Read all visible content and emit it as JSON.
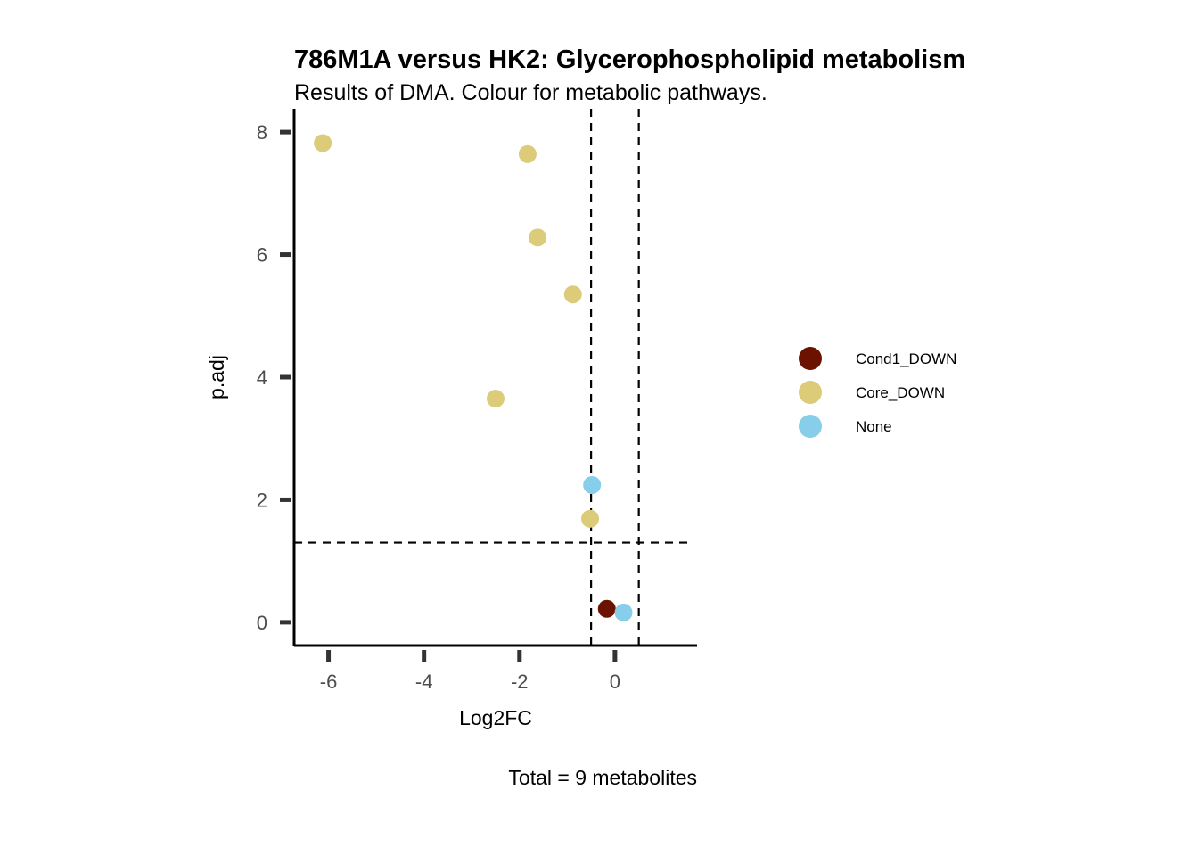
{
  "chart_data": {
    "type": "scatter",
    "title": "786M1A versus HK2: Glycerophospholipid metabolism",
    "subtitle": "Results of DMA. Colour for metabolic pathways.",
    "xlabel": "Log2FC",
    "ylabel": "p.adj",
    "caption": "Total = 9 metabolites",
    "xlim": [
      -6.72,
      1.72
    ],
    "ylim": [
      -0.38,
      8.38
    ],
    "xticks": [
      -6,
      -4,
      -2,
      0
    ],
    "yticks": [
      0,
      2,
      4,
      6,
      8
    ],
    "xtick_labels": [
      "-6",
      "-4",
      "-2",
      "0"
    ],
    "ytick_labels": [
      "0",
      "2",
      "4",
      "6",
      "8"
    ],
    "thresholds": {
      "x": [
        -0.5,
        0.5
      ],
      "y": [
        1.3
      ]
    },
    "grid": false,
    "legend_position": "right",
    "series": [
      {
        "name": "Cond1_DOWN",
        "color": "#6b1200",
        "points": [
          {
            "x": -0.17,
            "y": 0.22
          }
        ]
      },
      {
        "name": "Core_DOWN",
        "color": "#dccb78",
        "points": [
          {
            "x": -6.12,
            "y": 7.82
          },
          {
            "x": -1.83,
            "y": 7.64
          },
          {
            "x": -1.62,
            "y": 6.28
          },
          {
            "x": -0.88,
            "y": 5.35
          },
          {
            "x": -2.5,
            "y": 3.65
          },
          {
            "x": -0.52,
            "y": 1.69
          }
        ]
      },
      {
        "name": "None",
        "color": "#87ceeb",
        "points": [
          {
            "x": -0.48,
            "y": 2.24
          },
          {
            "x": 0.18,
            "y": 0.16
          }
        ]
      }
    ]
  }
}
